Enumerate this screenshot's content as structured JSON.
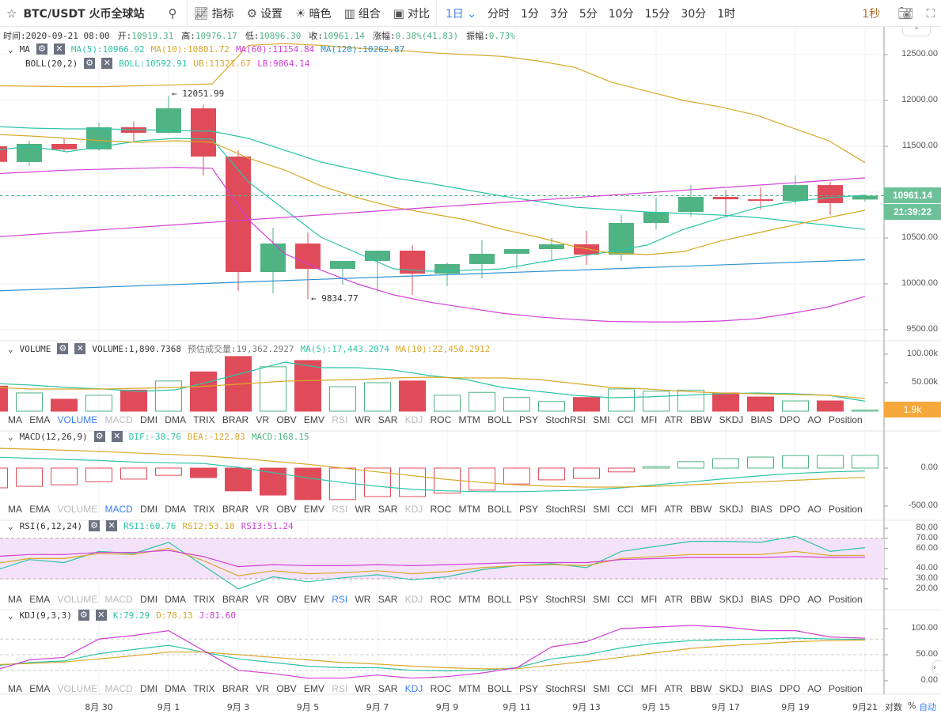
{
  "header": {
    "title": "BTC/USDT 火币全球站",
    "icons": {
      "favorite": "star-icon",
      "search": "search-icon"
    },
    "tools": [
      {
        "label": "指标",
        "icon": "indicator-icon"
      },
      {
        "label": "设置",
        "icon": "gear-icon"
      },
      {
        "label": "暗色",
        "icon": "sun-icon"
      },
      {
        "label": "组合",
        "icon": "layout-icon"
      },
      {
        "label": "对比",
        "icon": "compare-icon"
      }
    ],
    "timeframes": [
      "1日",
      "分时",
      "1分",
      "3分",
      "5分",
      "10分",
      "15分",
      "30分",
      "1时"
    ],
    "active_timeframe": "1日",
    "refresh": "1秒"
  },
  "info": {
    "time_label": "时间:",
    "time": "2020-09-21 08:00",
    "open_label": "开:",
    "open": "10919.31",
    "high_label": "高:",
    "high": "10976.17",
    "low_label": "低:",
    "low": "10896.30",
    "close_label": "收:",
    "close": "10961.14",
    "change_label": "涨幅:",
    "change": "0.38%(41.83)",
    "amp_label": "振幅:",
    "amp": "0.73%"
  },
  "ma": {
    "name": "MA",
    "ma5": "MA(5):10966.92",
    "ma10": "MA(10):10801.72",
    "ma60": "MA(60):11154.84",
    "ma120": "MA(120):10262.87"
  },
  "boll": {
    "name": "BOLL(20,2)",
    "mid": "BOLL:10592.91",
    "ub": "UB:11321.67",
    "lb": "LB:9864.14"
  },
  "volume": {
    "name": "VOLUME",
    "value": "VOLUME:1,890.7368",
    "est": "预估成交量:19,362.2927",
    "ma5": "MA(5):17,443.2074",
    "ma10": "MA(10):22,450.2912",
    "tag": "1.9k"
  },
  "macd": {
    "name": "MACD(12,26,9)",
    "dif": "DIF:-38.76",
    "dea": "DEA:-122.83",
    "macd": "MACD:168.15"
  },
  "rsi": {
    "name": "RSI(6,12,24)",
    "rsi1": "RSI1:60.76",
    "rsi2": "RSI2:53.18",
    "rsi3": "RSI3:51.24"
  },
  "kdj": {
    "name": "KDJ(9,3,3)",
    "k": "K:79.29",
    "d": "D:78.13",
    "j": "J:81.60"
  },
  "indicator_tabs": [
    "MA",
    "EMA",
    "VOLUME",
    "MACD",
    "DMI",
    "DMA",
    "TRIX",
    "BRAR",
    "VR",
    "OBV",
    "EMV",
    "RSI",
    "WR",
    "SAR",
    "KDJ",
    "ROC",
    "MTM",
    "BOLL",
    "PSY",
    "StochRSI",
    "SMI",
    "CCI",
    "MFI",
    "ATR",
    "BBW",
    "SKDJ",
    "BIAS",
    "DPO",
    "AO",
    "Position"
  ],
  "price_tag": "10961.14",
  "countdown": "21:39:22",
  "annotations": {
    "high": "← 12051.99",
    "low": "← 9834.77"
  },
  "axes": {
    "price": [
      "12500.00",
      "12000.00",
      "11500.00",
      "10500.00",
      "10000.00",
      "9500.00"
    ],
    "volume": [
      "100.00k",
      "50.00k"
    ],
    "macd": [
      "0.00",
      "-500.00"
    ],
    "rsi": [
      "80.00",
      "70.00",
      "60.00",
      "40.00",
      "30.00",
      "20.00"
    ],
    "kdj": [
      "100.00",
      "50.00",
      "0.00"
    ]
  },
  "dates": [
    "8月 30",
    "9月 1",
    "9月 3",
    "9月 5",
    "9月 7",
    "9月 9",
    "9月 11",
    "9月 13",
    "9月 15",
    "9月 17",
    "9月 19",
    "9月21"
  ],
  "footer": {
    "log": "对数",
    "percent": "%",
    "auto": "自动"
  },
  "colors": {
    "up": "#4fb383",
    "down": "#e04b5a",
    "teal": "#2ec4a5",
    "gold": "#d9a82a",
    "magenta": "#d23fd6",
    "blue": "#2e93d1",
    "accent": "#3b7ff2"
  },
  "chart_data": {
    "type": "candlestick",
    "candles": [
      [
        11500,
        11520,
        11300,
        11330
      ],
      [
        11328,
        11560,
        11290,
        11526
      ],
      [
        11526,
        11580,
        11440,
        11466
      ],
      [
        11466,
        11760,
        11450,
        11707
      ],
      [
        11707,
        11770,
        11560,
        11647
      ],
      [
        11647,
        12052,
        11640,
        11914
      ],
      [
        11914,
        11950,
        11180,
        11388
      ],
      [
        11388,
        11457,
        9922,
        10129
      ],
      [
        10129,
        10612,
        9897,
        10440
      ],
      [
        10440,
        10560,
        9835,
        10164
      ],
      [
        10164,
        10250,
        9990,
        10250
      ],
      [
        10250,
        10362,
        9915,
        10362
      ],
      [
        10362,
        10420,
        9880,
        10112
      ],
      [
        10112,
        10233,
        9975,
        10216
      ],
      [
        10216,
        10474,
        10060,
        10328
      ],
      [
        10328,
        10379,
        10164,
        10379
      ],
      [
        10379,
        10500,
        10250,
        10431
      ],
      [
        10431,
        10578,
        10207,
        10319
      ],
      [
        10319,
        10750,
        10250,
        10664
      ],
      [
        10664,
        10940,
        10595,
        10784
      ],
      [
        10784,
        11078,
        10732,
        10948
      ],
      [
        10948,
        11026,
        10732,
        10922
      ],
      [
        10922,
        11052,
        10810,
        10905
      ],
      [
        10905,
        11181,
        10870,
        11077
      ],
      [
        11077,
        11112,
        10750,
        10880
      ],
      [
        10919.31,
        10976.17,
        10896.3,
        10961.14
      ]
    ],
    "ma5": [
      11457,
      11500,
      11440,
      11500,
      11560,
      11586,
      11578,
      11112,
      10810,
      10509,
      10336,
      10164,
      10138,
      10147,
      10164,
      10233,
      10293,
      10353,
      10423,
      10595,
      10716,
      10828,
      10897,
      10940,
      10966.92
    ],
    "ma10": [
      11629,
      11612,
      11586,
      11560,
      11543,
      11560,
      11543,
      11371,
      11241,
      11069,
      10940,
      10836,
      10767,
      10698,
      10595,
      10509,
      10405,
      10336,
      10319,
      10353,
      10466,
      10552,
      10638,
      10724,
      10801.72
    ],
    "ma60": [
      10510,
      11154.84
    ],
    "ma120": [
      9922,
      10262.87
    ],
    "boll_mid": [
      11716,
      11698,
      11690,
      11690,
      11681,
      11672,
      11664,
      11586,
      11457,
      11328,
      11241,
      11155,
      11095,
      11026,
      10957,
      10897,
      10836,
      10810,
      10784,
      10767,
      10750,
      10724,
      10681,
      10638,
      10592.91
    ],
    "boll_ub": [
      12160,
      12155,
      12150,
      12150,
      12160,
      12170,
      12180,
      12600,
      12620,
      12600,
      12570,
      12550,
      12520,
      12500,
      12480,
      12430,
      12360,
      12200,
      12100,
      12000,
      11930,
      11840,
      11700,
      11560,
      11321.67
    ],
    "boll_lb": [
      11200,
      11220,
      11240,
      11250,
      11260,
      11270,
      11260,
      10700,
      10330,
      10150,
      10000,
      9880,
      9800,
      9740,
      9680,
      9640,
      9610,
      9590,
      9585,
      9585,
      9595,
      9620,
      9680,
      9750,
      9864.14
    ],
    "volume_k": [
      44,
      32,
      21,
      28,
      37,
      53,
      69,
      96,
      78,
      89,
      43,
      50,
      53,
      28,
      33,
      24,
      17,
      24,
      39,
      35,
      37,
      32,
      25,
      18,
      18,
      1.89
    ],
    "volume_ma5_k": [
      48.6,
      45.8,
      41.7,
      38.9,
      34.7,
      37.5,
      52.8,
      69.4,
      86.1,
      76.4,
      76.4,
      72.2,
      62.5,
      55.6,
      41.7,
      34.7,
      27.8,
      23.6,
      25,
      27.8,
      30.6,
      31.9,
      30.6,
      27.8,
      17.44
    ],
    "volume_ma10_k": [
      41.7,
      38.9,
      38.9,
      38.9,
      40.3,
      41.7,
      44.4,
      48.6,
      52.8,
      54.2,
      55.6,
      58.3,
      59.7,
      58.3,
      58.3,
      55.6,
      48.6,
      41.7,
      38.9,
      34.7,
      31.9,
      30.6,
      29.2,
      27.8,
      22.45
    ],
    "macd_hist": [
      -260,
      -240,
      -220,
      -180,
      -145,
      -95,
      -125,
      -300,
      -355,
      -415,
      -415,
      -375,
      -375,
      -330,
      -290,
      -210,
      -155,
      -135,
      -50,
      20,
      85,
      125,
      145,
      165,
      168,
      168.15
    ],
    "dif": [
      145,
      130,
      115,
      100,
      80,
      70,
      60,
      10,
      -60,
      -130,
      -190,
      -240,
      -280,
      -300,
      -310,
      -310,
      -300,
      -290,
      -260,
      -220,
      -180,
      -140,
      -100,
      -70,
      -50,
      -38.76
    ],
    "dea": [
      260,
      250,
      235,
      220,
      200,
      180,
      160,
      130,
      90,
      50,
      0,
      -50,
      -100,
      -150,
      -190,
      -220,
      -240,
      -250,
      -250,
      -240,
      -220,
      -200,
      -180,
      -160,
      -140,
      -122.83
    ],
    "rsi1": [
      38,
      49,
      46,
      57,
      55,
      66,
      43,
      20,
      32,
      27,
      31,
      34,
      29,
      32,
      39,
      43,
      45,
      41,
      57,
      62,
      67,
      67,
      66,
      72,
      57,
      60.76
    ],
    "rsi2": [
      45,
      50,
      50,
      55,
      54,
      60,
      48,
      33,
      38,
      35,
      36,
      38,
      35,
      37,
      41,
      43,
      44,
      43,
      50,
      52,
      54,
      54,
      54,
      57,
      53,
      53.18
    ],
    "rsi3": [
      52,
      54,
      54,
      56,
      56,
      58,
      52,
      42,
      44,
      43,
      43,
      44,
      43,
      44,
      45,
      46,
      46,
      46,
      49,
      50,
      51,
      51,
      51,
      52,
      51,
      51.24
    ],
    "k": [
      29,
      35,
      38,
      52,
      60,
      68,
      55,
      42,
      35,
      28,
      25,
      25,
      20,
      19,
      20,
      25,
      42,
      50,
      63,
      72,
      77,
      79,
      80,
      82,
      80,
      79.29
    ],
    "d": [
      31,
      33,
      36,
      42,
      48,
      55,
      55,
      50,
      45,
      40,
      35,
      32,
      28,
      25,
      23,
      23,
      30,
      37,
      45,
      54,
      62,
      67,
      71,
      75,
      77,
      78.13
    ],
    "j": [
      20,
      40,
      45,
      80,
      87,
      96,
      58,
      20,
      14,
      5,
      5,
      11,
      5,
      8,
      15,
      25,
      65,
      75,
      100,
      103,
      106,
      103,
      96,
      96,
      84,
      81.6
    ],
    "rsi_band": [
      30,
      70
    ],
    "kdj_levels": [
      20,
      50,
      80
    ],
    "price_range": [
      9400,
      12800
    ],
    "grid": true
  }
}
